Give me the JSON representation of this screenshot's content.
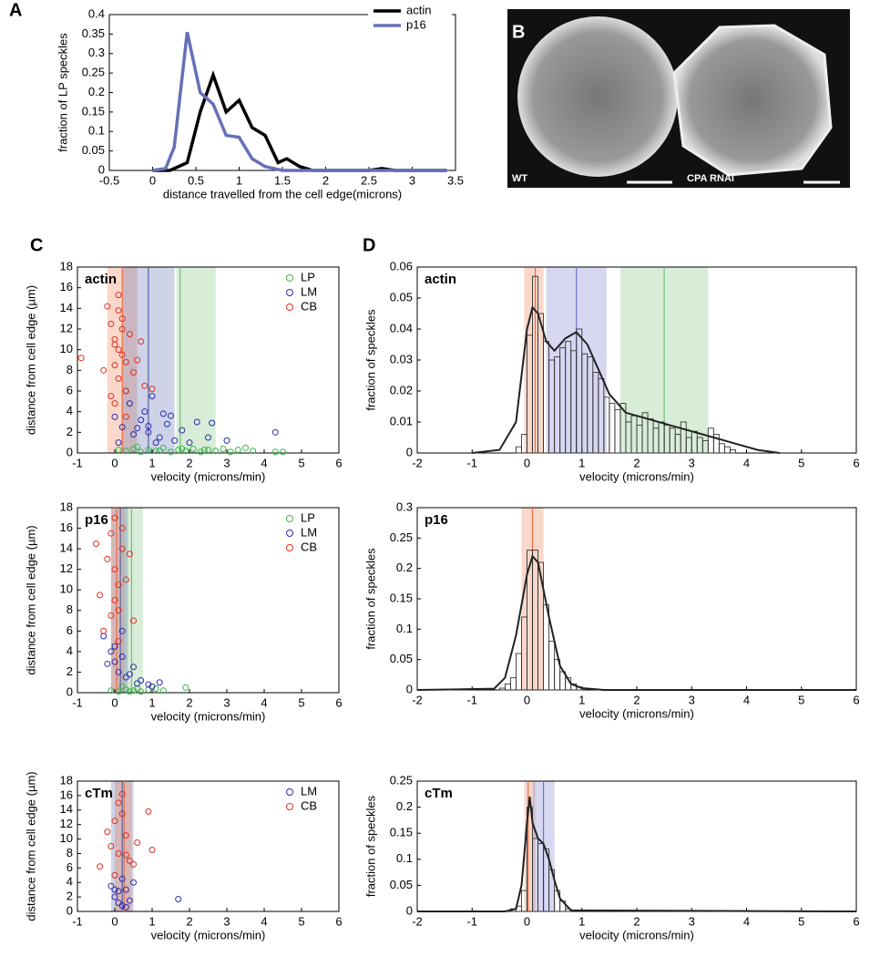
{
  "chart_data": [
    {
      "type": "line",
      "panel": "A",
      "xlabel": "distance travelled from the cell edge(microns)",
      "ylabel": "fraction of LP speckles",
      "xlim": [
        -0.5,
        3.5
      ],
      "xticks": [
        -0.5,
        0,
        0.5,
        1,
        1.5,
        2,
        2.5,
        3,
        3.5
      ],
      "ylim": [
        0,
        0.4
      ],
      "yticks": [
        0,
        0.05,
        0.1,
        0.15,
        0.2,
        0.25,
        0.3,
        0.35,
        0.4
      ],
      "legend": "upper right",
      "series": [
        {
          "name": "actin",
          "color": "#000000",
          "x": [
            0,
            0.2,
            0.4,
            0.55,
            0.7,
            0.85,
            1.0,
            1.15,
            1.3,
            1.45,
            1.55,
            1.7,
            1.85,
            2.0,
            2.5,
            2.65,
            2.8,
            3.4
          ],
          "values": [
            0,
            0,
            0.02,
            0.15,
            0.245,
            0.15,
            0.18,
            0.11,
            0.09,
            0.02,
            0.03,
            0.01,
            0,
            0,
            0,
            0.005,
            0,
            0
          ]
        },
        {
          "name": "p16",
          "color": "#6670b8",
          "x": [
            0,
            0.15,
            0.25,
            0.4,
            0.55,
            0.7,
            0.85,
            1.0,
            1.15,
            1.3,
            1.5,
            1.7,
            2.0,
            3.4
          ],
          "values": [
            0,
            0.005,
            0.06,
            0.355,
            0.2,
            0.17,
            0.09,
            0.085,
            0.03,
            0.01,
            0,
            0,
            0,
            0
          ]
        }
      ]
    },
    {
      "type": "scatter",
      "panel": "C",
      "label": "actin",
      "xlabel": "velocity (microns/min)",
      "ylabel": "distance from cell edge (µm)",
      "xlim": [
        -1,
        6
      ],
      "xticks": [
        -1,
        0,
        1,
        2,
        3,
        4,
        5,
        6
      ],
      "ylim": [
        0,
        18
      ],
      "yticks": [
        0,
        2,
        4,
        6,
        8,
        10,
        12,
        14,
        16,
        18
      ],
      "legend": "upper right",
      "bands": [
        {
          "color": "#e87040",
          "x0": -0.2,
          "x1": 0.6,
          "center": 0.2
        },
        {
          "color": "#5060a8",
          "x0": 0.2,
          "x1": 1.6,
          "center": 0.9
        },
        {
          "color": "#70c070",
          "x0": 1.65,
          "x1": 2.7,
          "center": 1.75
        }
      ],
      "series": [
        {
          "name": "LP",
          "color": "#3cb44b",
          "x": [
            0.1,
            0.3,
            0.5,
            0.7,
            0.9,
            1.1,
            1.3,
            1.5,
            1.7,
            1.9,
            2.1,
            2.3,
            2.5,
            2.7,
            2.9,
            3.1,
            3.3,
            3.5,
            3.7,
            4.3,
            4.5,
            0.6,
            1.2,
            1.8,
            2.4
          ],
          "values": [
            0.3,
            0.2,
            0.4,
            0.1,
            0.3,
            0.2,
            0.5,
            0.1,
            0.3,
            0.2,
            0.4,
            0.1,
            0.3,
            0.2,
            0.4,
            0.1,
            0.3,
            0.5,
            0.2,
            0.1,
            0.1,
            0.6,
            0.2,
            0.4,
            0.3
          ]
        },
        {
          "name": "LM",
          "color": "#2b2bb0",
          "x": [
            0.0,
            0.2,
            0.4,
            0.5,
            0.7,
            0.9,
            1.0,
            1.2,
            1.4,
            1.6,
            1.8,
            2.0,
            2.2,
            2.5,
            3.0,
            4.3,
            0.3,
            0.8,
            1.1,
            1.5,
            0.6,
            1.3,
            2.6,
            0.1,
            0.9
          ],
          "values": [
            3.5,
            2.5,
            4.8,
            1.8,
            3.2,
            2.0,
            5.5,
            1.5,
            2.8,
            1.2,
            2.2,
            1.0,
            3.0,
            1.5,
            1.2,
            2.0,
            6.0,
            4.0,
            1.0,
            3.6,
            2.4,
            3.8,
            2.9,
            1.0,
            2.6
          ]
        },
        {
          "name": "CB",
          "color": "#e0301e",
          "x": [
            -0.9,
            -0.2,
            -0.1,
            0.0,
            0.0,
            0.1,
            0.1,
            0.2,
            0.2,
            0.3,
            -0.1,
            0.0,
            0.4,
            0.5,
            0.6,
            0.3,
            0.1,
            -0.3,
            0.8,
            0.2,
            0.0,
            0.1,
            0.7,
            1.0,
            0.3
          ],
          "values": [
            9.2,
            14.2,
            12.5,
            11.0,
            8.5,
            10.0,
            7.2,
            9.5,
            13.0,
            6.0,
            5.5,
            4.8,
            11.5,
            7.8,
            9.0,
            3.5,
            15.3,
            8.0,
            6.5,
            12.0,
            10.5,
            13.8,
            10.8,
            6.2,
            8.8
          ]
        }
      ]
    },
    {
      "type": "scatter",
      "label": "p16",
      "xlabel": "velocity (microns/min)",
      "ylabel": "distance from cell edge (µm)",
      "xlim": [
        -1,
        6
      ],
      "xticks": [
        -1,
        0,
        1,
        2,
        3,
        4,
        5,
        6
      ],
      "ylim": [
        0,
        18
      ],
      "yticks": [
        0,
        2,
        4,
        6,
        8,
        10,
        12,
        14,
        16,
        18
      ],
      "legend": "upper right",
      "bands": [
        {
          "color": "#70c070",
          "x0": 0.2,
          "x1": 0.75,
          "center": 0.45
        },
        {
          "color": "#5060a8",
          "x0": -0.1,
          "x1": 0.35,
          "center": 0.15
        },
        {
          "color": "#e87040",
          "x0": -0.1,
          "x1": 0.25,
          "center": 0.05
        }
      ],
      "series": [
        {
          "name": "LP",
          "color": "#3cb44b",
          "x": [
            -0.1,
            0.1,
            0.3,
            0.5,
            0.7,
            0.9,
            1.1,
            1.3,
            1.9,
            0.2,
            0.4,
            0.6
          ],
          "values": [
            0.2,
            0.1,
            0.3,
            0.2,
            0.1,
            0.3,
            0.4,
            0.2,
            0.5,
            0.6,
            0.1,
            0.4
          ]
        },
        {
          "name": "LM",
          "color": "#2b2bb0",
          "x": [
            -0.3,
            -0.1,
            0.0,
            0.1,
            0.2,
            0.3,
            0.5,
            0.7,
            0.9,
            1.2,
            0.0,
            0.2,
            0.4,
            -0.2,
            0.6,
            1.0
          ],
          "values": [
            5.5,
            4.0,
            3.0,
            2.0,
            6.0,
            1.5,
            2.5,
            1.2,
            0.8,
            1.0,
            4.5,
            3.5,
            1.8,
            2.8,
            0.9,
            0.6
          ]
        },
        {
          "name": "CB",
          "color": "#e0301e",
          "x": [
            -0.5,
            -0.2,
            -0.1,
            0.0,
            0.1,
            0.2,
            0.3,
            0.0,
            -0.1,
            0.1,
            0.4,
            -0.3,
            0.2,
            0.0,
            0.1,
            -0.4,
            0.5
          ],
          "values": [
            14.5,
            13.0,
            15.5,
            12.0,
            10.5,
            14.0,
            11.0,
            9.0,
            7.5,
            8.0,
            13.5,
            6.0,
            16.0,
            17.0,
            5.0,
            9.5,
            7.0
          ]
        }
      ]
    },
    {
      "type": "scatter",
      "label": "cTm",
      "xlabel": "velocity (microns/min)",
      "ylabel": "distance from cell edge (µm)",
      "xlim": [
        -1,
        6
      ],
      "xticks": [
        -1,
        0,
        1,
        2,
        3,
        4,
        5,
        6
      ],
      "ylim": [
        0,
        18
      ],
      "yticks": [
        0,
        2,
        4,
        6,
        8,
        10,
        12,
        14,
        16,
        18
      ],
      "legend": "upper right",
      "bands": [
        {
          "color": "#5060a8",
          "x0": -0.1,
          "x1": 0.5,
          "center": 0.2
        },
        {
          "color": "#e87040",
          "x0": 0.0,
          "x1": 0.45,
          "center": 0.25
        }
      ],
      "series": [
        {
          "name": "LM",
          "color": "#2b2bb0",
          "x": [
            -0.1,
            0.0,
            0.1,
            0.2,
            0.3,
            0.4,
            0.5,
            0.1,
            0.2,
            0.3,
            1.7,
            0.0
          ],
          "values": [
            3.5,
            2.0,
            1.2,
            4.5,
            3.0,
            1.5,
            4.0,
            2.8,
            0.8,
            0.6,
            1.7,
            3.0
          ]
        },
        {
          "name": "CB",
          "color": "#e0301e",
          "x": [
            -0.4,
            -0.1,
            0.0,
            0.1,
            0.2,
            0.3,
            0.4,
            0.6,
            0.9,
            1.0,
            -0.2,
            0.1,
            0.5,
            0.2,
            0.0,
            0.3
          ],
          "values": [
            6.2,
            9.0,
            12.5,
            8.0,
            13.5,
            10.5,
            7.0,
            9.5,
            13.8,
            8.5,
            11.0,
            15.0,
            6.5,
            16.2,
            5.0,
            7.8
          ]
        }
      ]
    },
    {
      "type": "histogram",
      "panel": "D",
      "label": "actin",
      "xlabel": "velocity (microns/min)",
      "ylabel": "fraction of speckles",
      "xlim": [
        -2,
        6
      ],
      "xticks": [
        -2,
        -1,
        0,
        1,
        2,
        3,
        4,
        5,
        6
      ],
      "ylim": [
        0,
        0.06
      ],
      "yticks": [
        0,
        0.01,
        0.02,
        0.03,
        0.04,
        0.05,
        0.06
      ],
      "bands": [
        {
          "color": "#e87040",
          "x0": -0.05,
          "x1": 0.3,
          "center": 0.15
        },
        {
          "color": "#7070d0",
          "x0": 0.35,
          "x1": 1.45,
          "center": 0.9
        },
        {
          "color": "#70c070",
          "x0": 1.7,
          "x1": 3.3,
          "center": 2.5
        }
      ],
      "bins": [
        -0.2,
        -0.1,
        0,
        0.1,
        0.2,
        0.3,
        0.4,
        0.5,
        0.6,
        0.7,
        0.8,
        0.9,
        1.0,
        1.1,
        1.2,
        1.3,
        1.4,
        1.5,
        1.6,
        1.7,
        1.8,
        1.9,
        2.0,
        2.1,
        2.2,
        2.3,
        2.4,
        2.5,
        2.6,
        2.7,
        2.8,
        2.9,
        3.0,
        3.1,
        3.2,
        3.3,
        3.4,
        3.5,
        3.6,
        3.7,
        3.8
      ],
      "values": [
        0.002,
        0.006,
        0.038,
        0.057,
        0.045,
        0.036,
        0.03,
        0.031,
        0.034,
        0.036,
        0.033,
        0.04,
        0.032,
        0.031,
        0.026,
        0.024,
        0.018,
        0.016,
        0.014,
        0.016,
        0.01,
        0.012,
        0.009,
        0.013,
        0.011,
        0.008,
        0.01,
        0.009,
        0.008,
        0.006,
        0.01,
        0.005,
        0.007,
        0.005,
        0.004,
        0.008,
        0.006,
        0.003,
        0.002,
        0.001
      ],
      "fit": {
        "x": [
          -1,
          -0.5,
          -0.2,
          0,
          0.1,
          0.2,
          0.35,
          0.5,
          0.7,
          0.9,
          1.1,
          1.3,
          1.5,
          1.8,
          2.2,
          2.6,
          3.0,
          3.4,
          3.8,
          4.2,
          4.6
        ],
        "values": [
          0,
          0.001,
          0.01,
          0.04,
          0.047,
          0.045,
          0.036,
          0.033,
          0.037,
          0.039,
          0.035,
          0.027,
          0.019,
          0.013,
          0.011,
          0.009,
          0.007,
          0.005,
          0.003,
          0.001,
          0
        ]
      }
    },
    {
      "type": "histogram",
      "label": "p16",
      "xlabel": "velocity (microns/min)",
      "ylabel": "fraction of speckles",
      "xlim": [
        -2,
        6
      ],
      "xticks": [
        -2,
        -1,
        0,
        1,
        2,
        3,
        4,
        5,
        6
      ],
      "ylim": [
        0,
        0.3
      ],
      "yticks": [
        0,
        0.05,
        0.1,
        0.15,
        0.2,
        0.25,
        0.3
      ],
      "bands": [
        {
          "color": "#e87040",
          "x0": -0.1,
          "x1": 0.3,
          "center": 0.1
        }
      ],
      "bins": [
        -0.5,
        -0.4,
        -0.3,
        -0.2,
        -0.1,
        0,
        0.1,
        0.2,
        0.3,
        0.4,
        0.5,
        0.6,
        0.7,
        0.8,
        0.9,
        1.0
      ],
      "values": [
        0.003,
        0.01,
        0.02,
        0.06,
        0.12,
        0.23,
        0.23,
        0.21,
        0.14,
        0.08,
        0.05,
        0.03,
        0.02,
        0.01,
        0.005
      ],
      "fit": {
        "x": [
          -2,
          -0.6,
          -0.4,
          -0.2,
          0,
          0.1,
          0.2,
          0.4,
          0.6,
          0.8,
          1.0,
          1.4,
          6
        ],
        "values": [
          0,
          0.002,
          0.02,
          0.09,
          0.19,
          0.22,
          0.21,
          0.12,
          0.04,
          0.01,
          0.003,
          0,
          0
        ]
      }
    },
    {
      "type": "histogram",
      "label": "cTm",
      "xlabel": "velocity (microns/min)",
      "ylabel": "fraction of speckles",
      "xlim": [
        -2,
        6
      ],
      "xticks": [
        -2,
        -1,
        0,
        1,
        2,
        3,
        4,
        5,
        6
      ],
      "ylim": [
        0,
        0.25
      ],
      "yticks": [
        0,
        0.05,
        0.1,
        0.15,
        0.2,
        0.25
      ],
      "bands": [
        {
          "color": "#e87040",
          "x0": -0.05,
          "x1": 0.15,
          "center": 0.02
        },
        {
          "color": "#7070d0",
          "x0": 0.1,
          "x1": 0.5,
          "center": 0.3
        }
      ],
      "bins": [
        -0.3,
        -0.2,
        -0.1,
        0,
        0.1,
        0.2,
        0.3,
        0.4,
        0.5,
        0.6,
        0.7,
        0.8
      ],
      "values": [
        0.005,
        0.01,
        0.04,
        0.2,
        0.14,
        0.13,
        0.12,
        0.08,
        0.04,
        0.02,
        0.005
      ],
      "fit": {
        "x": [
          -2,
          -0.4,
          -0.2,
          -0.1,
          0,
          0.05,
          0.1,
          0.2,
          0.3,
          0.4,
          0.5,
          0.6,
          0.8,
          6
        ],
        "values": [
          0,
          0,
          0.005,
          0.05,
          0.17,
          0.22,
          0.17,
          0.14,
          0.13,
          0.1,
          0.06,
          0.025,
          0.002,
          0
        ]
      }
    }
  ],
  "image": {
    "panel": "B",
    "labels": [
      "WT",
      "CPA RNAi"
    ]
  }
}
